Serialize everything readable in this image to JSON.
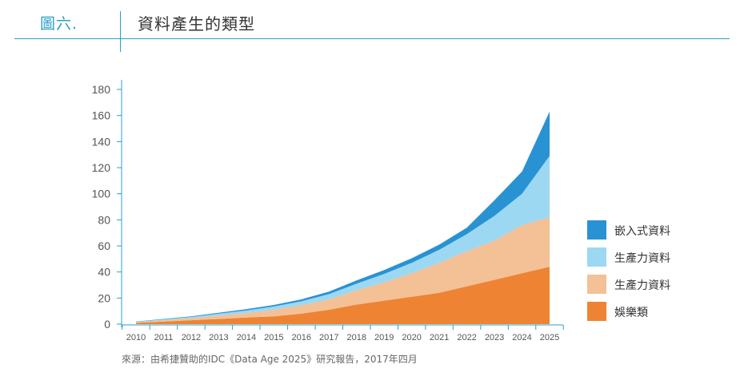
{
  "header": {
    "figure_label": "圖六.",
    "title": "資料產生的類型"
  },
  "chart_data": {
    "type": "area",
    "stacked": true,
    "categories": [
      "2010",
      "2011",
      "2012",
      "2013",
      "2014",
      "2015",
      "2016",
      "2017",
      "2018",
      "2019",
      "2020",
      "2021",
      "2022",
      "2023",
      "2024",
      "2025"
    ],
    "y_ticks": [
      0,
      20,
      40,
      60,
      80,
      100,
      120,
      140,
      160,
      180
    ],
    "ylim": [
      0,
      180
    ],
    "series": [
      {
        "name": "娛樂類",
        "color": "#ee8433",
        "values": [
          1,
          2,
          3,
          4,
          5,
          6,
          8,
          11,
          15,
          18,
          21,
          24,
          29,
          34,
          39,
          44
        ]
      },
      {
        "name": "生產力資料",
        "color": "#f4c096",
        "values": [
          0.5,
          1,
          1.5,
          2.5,
          3.5,
          5,
          6.5,
          8,
          11,
          14,
          18,
          23,
          27,
          30,
          37,
          38
        ]
      },
      {
        "name": "生產力資料",
        "color": "#9cd8f2",
        "values": [
          0.3,
          0.6,
          1,
          1.5,
          2,
          2.5,
          3,
          4,
          5,
          6.5,
          8,
          10,
          13,
          19,
          24,
          47
        ]
      },
      {
        "name": "嵌入式資料",
        "color": "#2992d3",
        "values": [
          0.2,
          0.4,
          0.5,
          0.7,
          1,
          1.2,
          1.5,
          2,
          2.5,
          3,
          3.5,
          4,
          5,
          12,
          17,
          34
        ]
      }
    ],
    "legend_order": [
      3,
      2,
      1,
      0
    ],
    "legend_position": "right",
    "grid": false
  },
  "source": "來源：由希捷贊助的IDC《Data Age 2025》研究報告，2017年四月"
}
